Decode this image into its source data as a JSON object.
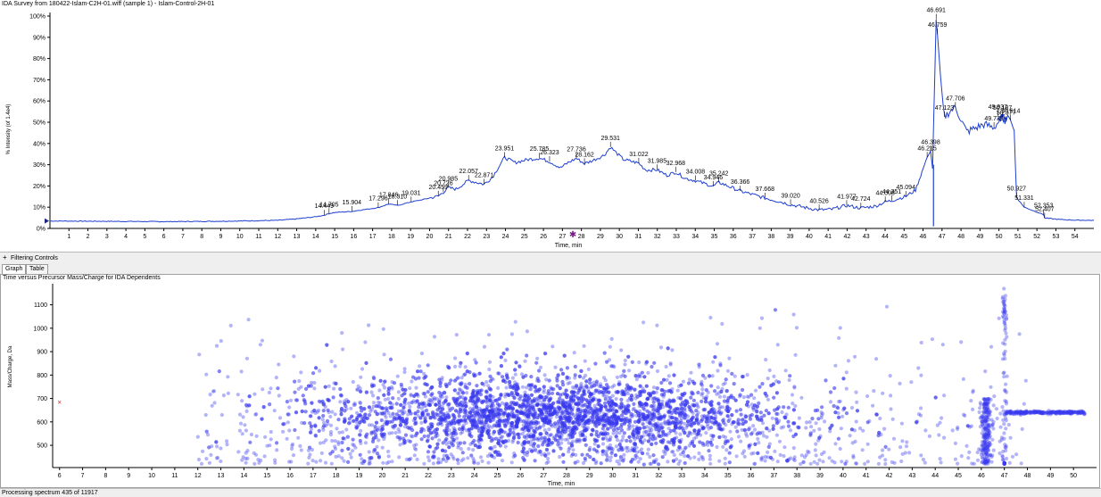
{
  "top": {
    "title": "IDA Survey from 180422-Islam-C2H-01.wiff (sample 1) - Islam-Control-2H-01"
  },
  "filter": {
    "toggle": "+",
    "label": "Filtering Controls"
  },
  "tabs": {
    "graph": "Graph",
    "table": "Table"
  },
  "bottom": {
    "title": "Time versus Precursor Mass/Charge for IDA Dependents"
  },
  "status": {
    "text": "Processing spectrum 435 of 11917"
  },
  "colors": {
    "trace": "#1f3fd1",
    "scatter": "#3a3aee",
    "axis": "#000000",
    "frame": "#a0a0a0"
  },
  "chart_data": [
    {
      "type": "line",
      "xlabel": "Time, min",
      "ylabel": "% Intensity (of 1.4e4)",
      "xlim": [
        0,
        55
      ],
      "ylim": [
        0,
        100
      ],
      "x_ticks": [
        1,
        2,
        3,
        4,
        5,
        6,
        7,
        8,
        9,
        10,
        11,
        12,
        13,
        14,
        15,
        16,
        17,
        18,
        19,
        20,
        21,
        22,
        23,
        24,
        25,
        26,
        27,
        28,
        29,
        30,
        31,
        32,
        33,
        34,
        35,
        36,
        37,
        38,
        39,
        40,
        41,
        42,
        43,
        44,
        45,
        46,
        47,
        48,
        49,
        50,
        51,
        52,
        53,
        54
      ],
      "y_tick_labels": [
        "0%",
        "10%",
        "20%",
        "30%",
        "40%",
        "50%",
        "60%",
        "70%",
        "80%",
        "90%",
        "100%"
      ],
      "y_ticks": [
        0,
        10,
        20,
        30,
        40,
        50,
        60,
        70,
        80,
        90,
        100
      ],
      "series": [
        {
          "x": [
            0,
            2,
            4,
            6,
            8,
            10,
            12,
            13,
            14,
            14.449,
            14.705,
            15,
            15.904,
            16.5,
            17.296,
            17.846,
            18.31,
            19.031,
            19.5,
            20.459,
            20.726,
            20.985,
            21.4,
            22.057,
            22.871,
            23.3,
            23.951,
            24.5,
            25.2,
            25.785,
            26.323,
            26.9,
            27.3,
            27.736,
            28.162,
            28.6,
            29.2,
            29.531,
            30.2,
            31.022,
            31.4,
            31.985,
            32.5,
            32.968,
            33.5,
            34.008,
            34.946,
            35.242,
            36.366,
            37.0,
            37.668,
            38.5,
            39.02,
            40.0,
            40.526,
            41.2,
            41.977,
            42.724,
            43.5,
            44.008,
            44.351,
            45.094,
            45.6,
            46.215,
            46.398,
            46.5,
            46.691,
            46.759,
            47.0,
            47.123,
            47.4,
            47.706,
            48.3,
            49.2,
            49.739,
            50.187,
            50.377,
            49.937,
            50.614,
            50.8,
            50.927,
            51.331,
            52.353,
            52.407,
            53.2,
            54.0,
            55.0
          ],
          "y": [
            3.5,
            3.4,
            3.3,
            3.2,
            3.3,
            3.5,
            3.8,
            4.5,
            5.5,
            6.2,
            7.0,
            7.5,
            8.0,
            8.8,
            9.8,
            11.5,
            10.8,
            12.5,
            13.3,
            15.2,
            17.1,
            19.2,
            18.5,
            22.6,
            20.8,
            24.0,
            33.4,
            31.0,
            32.5,
            33.1,
            31.5,
            28.5,
            31.0,
            33.0,
            30.5,
            32.0,
            34.5,
            38.3,
            32.5,
            30.7,
            27.5,
            27.6,
            25.0,
            26.5,
            23.5,
            22.5,
            19.8,
            21.7,
            17.6,
            16.0,
            14.3,
            12.5,
            11.2,
            9.5,
            8.7,
            9.0,
            10.8,
            9.6,
            10.5,
            12.5,
            13.1,
            15.1,
            18.0,
            33.5,
            36.4,
            28.0,
            98.5,
            91.5,
            62.0,
            52.5,
            55.0,
            57.0,
            45.5,
            49.0,
            47.5,
            52.6,
            50.3,
            53.0,
            51.0,
            46.0,
            14.5,
            10.0,
            6.5,
            4.9,
            4.2,
            3.9,
            3.8
          ],
          "labels": [
            {
              "x": 14.449,
              "y": 6.2,
              "text": "14.449"
            },
            {
              "x": 14.705,
              "y": 7.0,
              "text": "14.705"
            },
            {
              "x": 15.904,
              "y": 8.0,
              "text": "15.904"
            },
            {
              "x": 17.296,
              "y": 9.8,
              "text": "17.296"
            },
            {
              "x": 17.846,
              "y": 11.5,
              "text": "17.846"
            },
            {
              "x": 18.31,
              "y": 10.8,
              "text": "18.310"
            },
            {
              "x": 19.031,
              "y": 12.5,
              "text": "19.031"
            },
            {
              "x": 20.459,
              "y": 15.2,
              "text": "20.459"
            },
            {
              "x": 20.726,
              "y": 17.1,
              "text": "20.726"
            },
            {
              "x": 20.985,
              "y": 19.2,
              "text": "20.985"
            },
            {
              "x": 22.057,
              "y": 22.6,
              "text": "22.057"
            },
            {
              "x": 22.871,
              "y": 20.8,
              "text": "22.871"
            },
            {
              "x": 23.951,
              "y": 33.4,
              "text": "23.951"
            },
            {
              "x": 25.785,
              "y": 33.1,
              "text": "25.785"
            },
            {
              "x": 26.323,
              "y": 31.5,
              "text": "26.323"
            },
            {
              "x": 27.736,
              "y": 33.0,
              "text": "27.736"
            },
            {
              "x": 28.162,
              "y": 30.5,
              "text": "28.162"
            },
            {
              "x": 29.531,
              "y": 38.3,
              "text": "29.531"
            },
            {
              "x": 31.022,
              "y": 30.7,
              "text": "31.022"
            },
            {
              "x": 31.985,
              "y": 27.6,
              "text": "31.985"
            },
            {
              "x": 32.968,
              "y": 26.5,
              "text": "32.968"
            },
            {
              "x": 34.008,
              "y": 22.5,
              "text": "34.008"
            },
            {
              "x": 34.946,
              "y": 19.8,
              "text": "34.946"
            },
            {
              "x": 35.242,
              "y": 21.7,
              "text": "35.242"
            },
            {
              "x": 36.366,
              "y": 17.6,
              "text": "36.366"
            },
            {
              "x": 37.668,
              "y": 14.3,
              "text": "37.668"
            },
            {
              "x": 39.02,
              "y": 11.2,
              "text": "39.020"
            },
            {
              "x": 40.526,
              "y": 8.7,
              "text": "40.526"
            },
            {
              "x": 41.977,
              "y": 10.8,
              "text": "41.977"
            },
            {
              "x": 42.724,
              "y": 9.6,
              "text": "42.724"
            },
            {
              "x": 44.008,
              "y": 12.5,
              "text": "44.008"
            },
            {
              "x": 44.351,
              "y": 13.1,
              "text": "44.351"
            },
            {
              "x": 45.094,
              "y": 15.1,
              "text": "45.094"
            },
            {
              "x": 46.215,
              "y": 33.5,
              "text": "46.215"
            },
            {
              "x": 46.398,
              "y": 36.4,
              "text": "46.398"
            },
            {
              "x": 46.691,
              "y": 98.5,
              "text": "46.691"
            },
            {
              "x": 46.759,
              "y": 91.5,
              "text": "46.759"
            },
            {
              "x": 47.123,
              "y": 52.5,
              "text": "47.123"
            },
            {
              "x": 47.706,
              "y": 57.0,
              "text": "47.706"
            },
            {
              "x": 49.739,
              "y": 47.5,
              "text": "49.739"
            },
            {
              "x": 50.187,
              "y": 52.6,
              "text": "50.187"
            },
            {
              "x": 50.377,
              "y": 50.3,
              "text": "50.377"
            },
            {
              "x": 49.937,
              "y": 53.0,
              "text": "49.937"
            },
            {
              "x": 50.614,
              "y": 51.0,
              "text": "50.614"
            },
            {
              "x": 50.927,
              "y": 14.5,
              "text": "50.927"
            },
            {
              "x": 51.331,
              "y": 10.0,
              "text": "51.331"
            },
            {
              "x": 52.353,
              "y": 6.5,
              "text": "52.353"
            },
            {
              "x": 52.407,
              "y": 4.9,
              "text": "52.407"
            }
          ]
        }
      ],
      "grid": false
    },
    {
      "type": "scatter",
      "xlabel": "Time, min",
      "ylabel": "Mass/Charge, Da",
      "xlim": [
        5.7,
        51.0
      ],
      "ylim": [
        405,
        1190
      ],
      "x_ticks": [
        6,
        7,
        8,
        9,
        10,
        11,
        12,
        13,
        14,
        15,
        16,
        17,
        18,
        19,
        20,
        21,
        22,
        23,
        24,
        25,
        26,
        27,
        28,
        29,
        30,
        31,
        32,
        33,
        34,
        35,
        36,
        37,
        38,
        39,
        40,
        41,
        42,
        43,
        44,
        45,
        46,
        47,
        48,
        49,
        50
      ],
      "y_ticks": [
        500,
        600,
        700,
        800,
        900,
        1000,
        1100
      ],
      "density_profile": {
        "center_time": 27.5,
        "time_spread": 5.0,
        "center_mz": 590,
        "mz_spread": 95,
        "point_count_estimate": 11917
      },
      "features": [
        {
          "type": "vertical_stripe",
          "time": 46.2,
          "mz_range": [
            420,
            700
          ]
        },
        {
          "type": "horizontal_band",
          "time_range": [
            47.0,
            50.5
          ],
          "mz": 640
        },
        {
          "type": "vertical_stripe",
          "time": 47.0,
          "mz_range": [
            420,
            1170
          ]
        }
      ],
      "marker": {
        "time": 6.0,
        "mz": 685
      },
      "grid": false
    }
  ]
}
